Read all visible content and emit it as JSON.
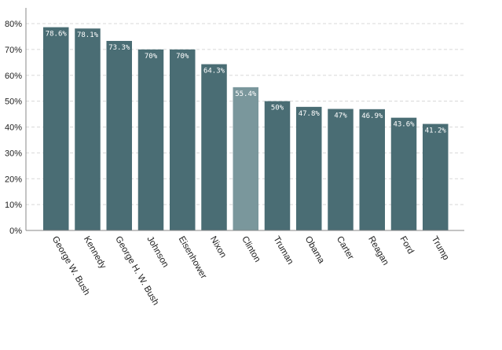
{
  "chart_data": {
    "type": "bar",
    "categories": [
      "George W. Bush",
      "Kennedy",
      "George H. W. Bush",
      "Johnson",
      "Eisenhower",
      "Nixon",
      "Clinton",
      "Truman",
      "Obama",
      "Carter",
      "Reagan",
      "Ford",
      "Trump"
    ],
    "values": [
      78.6,
      78.1,
      73.3,
      70,
      70,
      64.3,
      55.4,
      50,
      47.8,
      47,
      46.9,
      43.6,
      41.2
    ],
    "data_labels": [
      "78.6%",
      "78.1%",
      "73.3%",
      "70%",
      "70%",
      "64.3%",
      "55.4%",
      "50%",
      "47.8%",
      "47%",
      "46.9%",
      "43.6%",
      "41.2%"
    ],
    "highlight": "Clinton",
    "y_ticks": [
      0,
      10,
      20,
      30,
      40,
      50,
      60,
      70,
      80
    ],
    "y_tick_labels": [
      "0%",
      "10%",
      "20%",
      "30%",
      "40%",
      "50%",
      "60%",
      "70%",
      "80%"
    ],
    "ylim": [
      0,
      80
    ],
    "grid": "horizontal dashed",
    "title": "",
    "xlabel": "",
    "ylabel": ""
  },
  "colors": {
    "bar": "#4a6d74",
    "bar_highlight": "#7a979c",
    "grid": "#d8d8d8",
    "axis": "#888888"
  }
}
